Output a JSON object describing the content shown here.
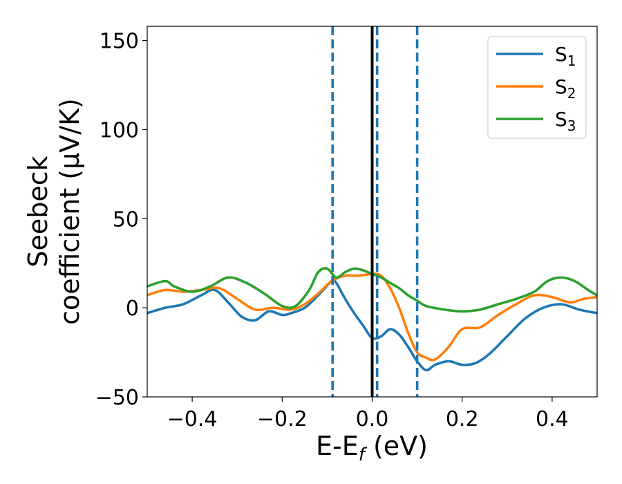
{
  "chart_data": {
    "type": "line",
    "xlabel": {
      "main": "E-E",
      "sub": "f",
      "suffix": " (eV)"
    },
    "ylabel": {
      "line1": "Seebeck",
      "line2": "coefficient  (μV/K)"
    },
    "xlim": [
      -0.5,
      0.5
    ],
    "ylim": [
      -50,
      158
    ],
    "xticks": [
      -0.4,
      -0.2,
      0.0,
      0.2,
      0.4
    ],
    "xtick_labels": [
      "−0.4",
      "−0.2",
      "0.0",
      "0.2",
      "0.4"
    ],
    "yticks": [
      -50,
      0,
      50,
      100,
      150
    ],
    "ytick_labels": [
      "−50",
      "0",
      "50",
      "100",
      "150"
    ],
    "grid": false,
    "legend_position": "top-right",
    "vertical_lines": [
      {
        "x": 0.0,
        "style": "solid",
        "color": "#000000"
      },
      {
        "x": -0.088,
        "style": "dashed",
        "color": "#1f77b4"
      },
      {
        "x": 0.011,
        "style": "dashed",
        "color": "#1f77b4"
      },
      {
        "x": 0.1,
        "style": "dashed",
        "color": "#1f77b4"
      }
    ],
    "series": [
      {
        "name": "S",
        "sub": "1",
        "color": "#1f77b4",
        "x": [
          -0.5,
          -0.46,
          -0.42,
          -0.38,
          -0.35,
          -0.32,
          -0.29,
          -0.26,
          -0.23,
          -0.2,
          -0.18,
          -0.15,
          -0.12,
          -0.09,
          -0.08,
          -0.06,
          -0.04,
          -0.02,
          0.0,
          0.02,
          0.04,
          0.06,
          0.08,
          0.1,
          0.12,
          0.14,
          0.17,
          0.2,
          0.23,
          0.26,
          0.3,
          0.34,
          0.38,
          0.42,
          0.46,
          0.5
        ],
        "y": [
          -3,
          0,
          2,
          7,
          10,
          3,
          -5,
          -7,
          -2,
          -4,
          -3,
          0,
          7,
          15,
          14,
          5,
          -3,
          -10,
          -17,
          -16,
          -12,
          -15,
          -22,
          -30,
          -35,
          -32,
          -30,
          -32,
          -31,
          -26,
          -16,
          -6,
          0,
          2,
          -1,
          -3
        ]
      },
      {
        "name": "S",
        "sub": "2",
        "color": "#ff7f0e",
        "x": [
          -0.5,
          -0.46,
          -0.42,
          -0.38,
          -0.34,
          -0.3,
          -0.26,
          -0.22,
          -0.18,
          -0.15,
          -0.12,
          -0.09,
          -0.06,
          -0.03,
          0.0,
          0.02,
          0.04,
          0.06,
          0.08,
          0.1,
          0.12,
          0.14,
          0.17,
          0.2,
          0.24,
          0.28,
          0.32,
          0.36,
          0.4,
          0.44,
          0.47,
          0.5
        ],
        "y": [
          7,
          10,
          9,
          10,
          11,
          5,
          -1,
          0,
          -1,
          2,
          8,
          15,
          18,
          18,
          19,
          18,
          11,
          0,
          -14,
          -25,
          -28,
          -29,
          -22,
          -12,
          -11,
          -4,
          2,
          7,
          6,
          3,
          5,
          6
        ]
      },
      {
        "name": "S",
        "sub": "3",
        "color": "#2ca02c",
        "x": [
          -0.5,
          -0.46,
          -0.44,
          -0.4,
          -0.36,
          -0.32,
          -0.28,
          -0.24,
          -0.2,
          -0.17,
          -0.14,
          -0.12,
          -0.1,
          -0.08,
          -0.06,
          -0.04,
          -0.02,
          0.0,
          0.02,
          0.04,
          0.06,
          0.08,
          0.1,
          0.12,
          0.16,
          0.2,
          0.24,
          0.28,
          0.32,
          0.36,
          0.39,
          0.42,
          0.45,
          0.48,
          0.5
        ],
        "y": [
          12,
          15,
          12,
          9,
          12,
          17,
          14,
          8,
          1,
          1,
          10,
          20,
          22,
          17,
          20,
          22,
          21,
          19,
          17,
          14,
          11,
          7,
          4,
          1,
          -1,
          -2,
          -1,
          2,
          5,
          9,
          15,
          17,
          15,
          10,
          7
        ]
      }
    ]
  }
}
